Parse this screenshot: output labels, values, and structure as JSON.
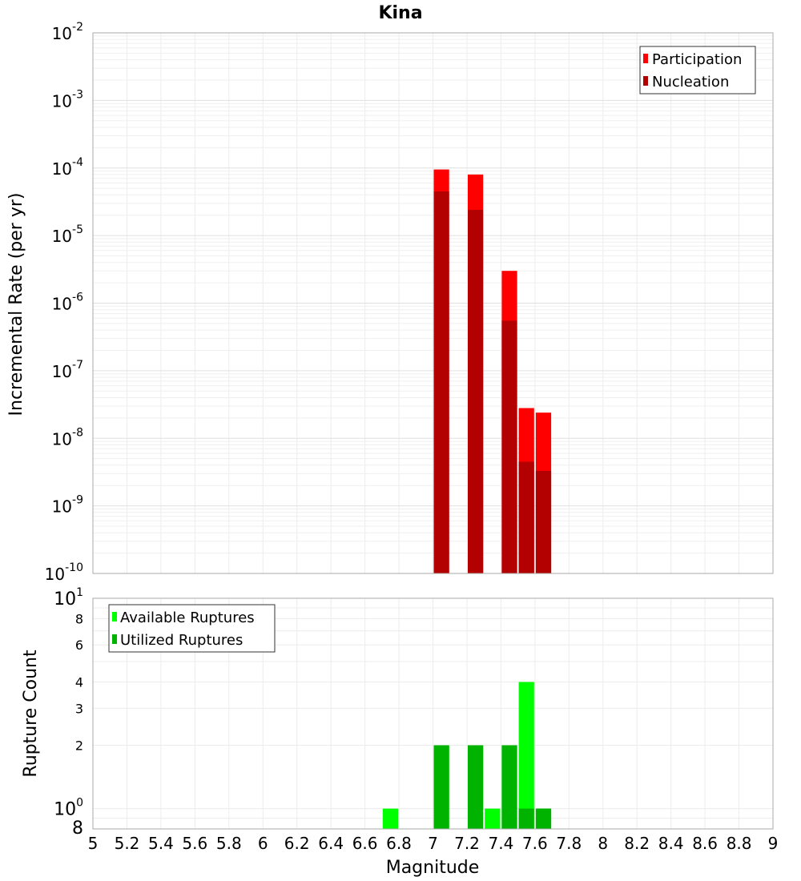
{
  "chart_data": [
    {
      "type": "bar",
      "title": "Kina",
      "xlabel": "Magnitude",
      "ylabel": "Incremental Rate (per yr)",
      "y_scale": "log",
      "ylim": [
        1e-10,
        0.01
      ],
      "xlim": [
        5,
        9
      ],
      "bin_width": 0.1,
      "grid": true,
      "legend_position": "top-right",
      "x_tick_labels": [
        "5",
        "5.2",
        "5.4",
        "5.6",
        "5.8",
        "6",
        "6.2",
        "6.4",
        "6.6",
        "6.8",
        "7",
        "7.2",
        "7.4",
        "7.6",
        "7.8",
        "8",
        "8.2",
        "8.4",
        "8.6",
        "8.8",
        "9"
      ],
      "y_tick_labels": [
        {
          "base": "10",
          "exp": "-2"
        },
        {
          "base": "10",
          "exp": "-3"
        },
        {
          "base": "10",
          "exp": "-4"
        },
        {
          "base": "10",
          "exp": "-5"
        },
        {
          "base": "10",
          "exp": "-6"
        },
        {
          "base": "10",
          "exp": "-7"
        },
        {
          "base": "10",
          "exp": "-8"
        },
        {
          "base": "10",
          "exp": "-9"
        },
        {
          "base": "10",
          "exp": "-10"
        }
      ],
      "x": [
        7.05,
        7.25,
        7.45,
        7.55,
        7.65
      ],
      "series": [
        {
          "name": "Participation",
          "color": "#ff0000",
          "values": [
            9.5e-05,
            8e-05,
            3e-06,
            2.8e-08,
            2.4e-08
          ]
        },
        {
          "name": "Nucleation",
          "color": "#b30000",
          "values": [
            4.5e-05,
            2.4e-05,
            5.5e-07,
            4.5e-09,
            3.3e-09
          ]
        }
      ]
    },
    {
      "type": "bar",
      "title": "",
      "xlabel": "Magnitude",
      "ylabel": "Rupture Count",
      "y_scale": "log",
      "ylim": [
        0.8,
        10
      ],
      "xlim": [
        5,
        9
      ],
      "bin_width": 0.1,
      "grid": true,
      "legend_position": "top-left",
      "y_tick_labels": [
        {
          "value": 10,
          "base": "10",
          "exp": "1"
        },
        {
          "value": 8,
          "label": "8"
        },
        {
          "value": 6,
          "label": "6"
        },
        {
          "value": 4,
          "label": "4"
        },
        {
          "value": 3,
          "label": "3"
        },
        {
          "value": 2,
          "label": "2"
        },
        {
          "value": 1,
          "base": "10",
          "exp": "0"
        },
        {
          "value": 0.8,
          "label": "8"
        }
      ],
      "x": [
        6.75,
        7.05,
        7.25,
        7.35,
        7.45,
        7.55,
        7.65
      ],
      "series": [
        {
          "name": "Available Ruptures",
          "color": "#00ff00",
          "values": [
            1,
            2,
            2,
            1,
            2,
            4,
            1
          ]
        },
        {
          "name": "Utilized Ruptures",
          "color": "#00b300",
          "values": [
            0,
            2,
            2,
            0,
            2,
            1,
            1
          ]
        }
      ]
    }
  ]
}
